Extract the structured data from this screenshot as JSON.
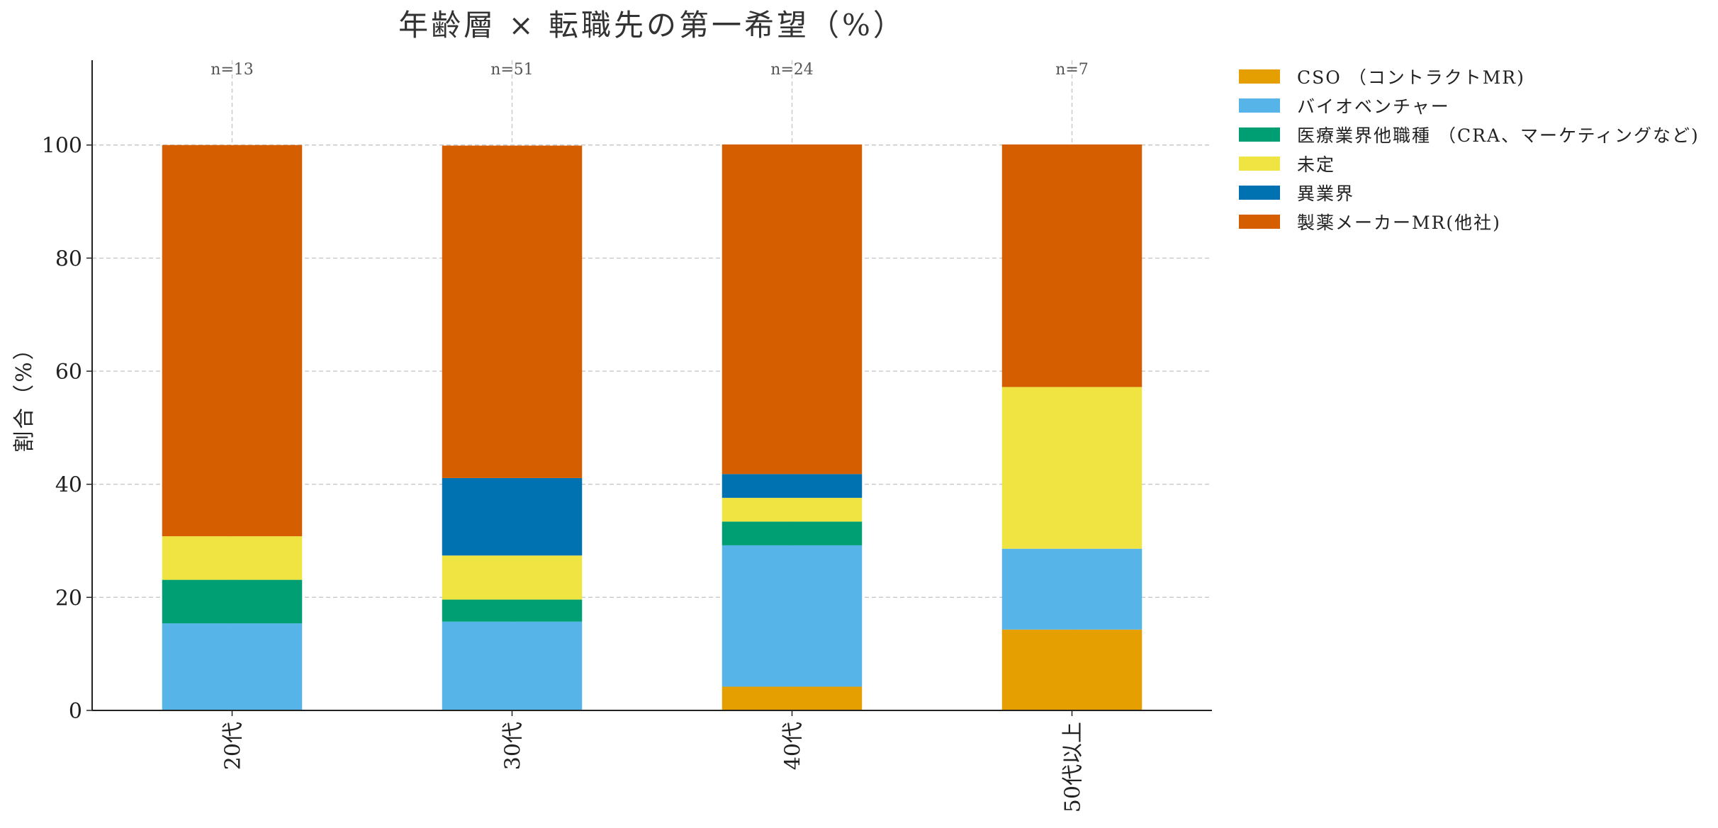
{
  "chart_data": {
    "type": "bar",
    "stacked": true,
    "title": "年齢層 × 転職先の第一希望（%）",
    "xlabel": "",
    "ylabel": "割合（%）",
    "ylim": [
      0,
      115
    ],
    "yticks": [
      0,
      20,
      40,
      60,
      80,
      100
    ],
    "grid": true,
    "legend_position": "right",
    "categories": [
      "20代",
      "30代",
      "40代",
      "50代以上"
    ],
    "sample_sizes": [
      "n=13",
      "n=51",
      "n=24",
      "n=7"
    ],
    "series": [
      {
        "name": "CSO （コントラクトMR)",
        "color": "#E69F00",
        "values": [
          0,
          0,
          4.2,
          14.3
        ]
      },
      {
        "name": "バイオベンチャー",
        "color": "#56B4E9",
        "values": [
          15.4,
          15.7,
          25.0,
          14.3
        ]
      },
      {
        "name": "医療業界他職種 （CRA、マーケティングなど)",
        "color": "#009E73",
        "values": [
          7.7,
          3.9,
          4.2,
          0
        ]
      },
      {
        "name": "未定",
        "color": "#F0E442",
        "values": [
          7.7,
          7.8,
          4.2,
          28.6
        ]
      },
      {
        "name": "異業界",
        "color": "#0072B2",
        "values": [
          0,
          13.7,
          4.2,
          0
        ]
      },
      {
        "name": "製薬メーカーMR(他社)",
        "color": "#D55E00",
        "values": [
          69.2,
          58.8,
          58.3,
          42.9
        ]
      }
    ]
  }
}
